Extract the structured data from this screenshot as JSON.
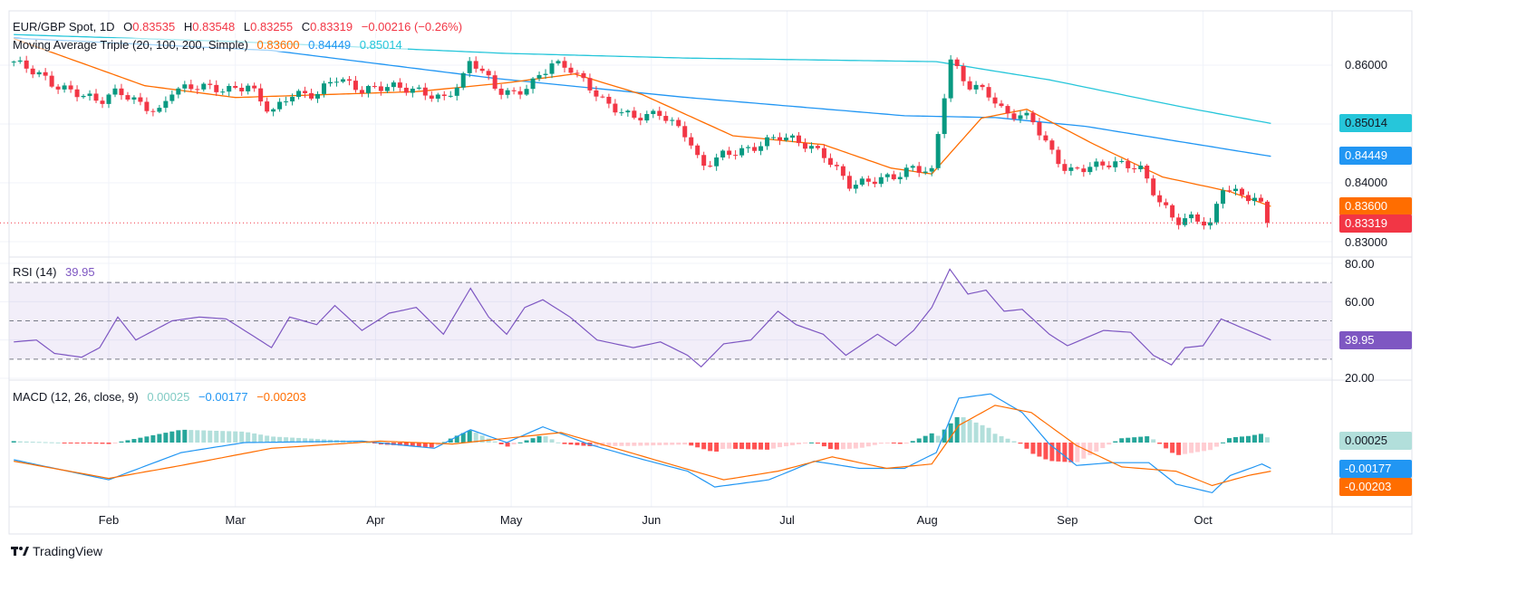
{
  "header": {
    "symbol": "EUR/GBP Spot, 1D",
    "open_label": "O",
    "open": "0.83535",
    "high_label": "H",
    "high": "0.83548",
    "low_label": "L",
    "low": "0.83255",
    "close_label": "C",
    "close": "0.83319",
    "change": "−0.00216 (−0.26%)"
  },
  "ma_legend": {
    "title": "Moving Average Triple (20, 100, 200, Simple)",
    "ma20": "0.83600",
    "ma100": "0.84449",
    "ma200": "0.85014"
  },
  "rsi_legend": {
    "title": "RSI (14)",
    "value": "39.95"
  },
  "macd_legend": {
    "title": "MACD (12, 26, close, 9)",
    "hist": "0.00025",
    "macd": "−0.00177",
    "signal": "−0.00203"
  },
  "price_axis": {
    "ticks": [
      "0.86000",
      "0.84000",
      "0.83000"
    ],
    "tags": {
      "ma200": "0.85014",
      "ma100": "0.84449",
      "ma20": "0.83600",
      "last": "0.83319"
    }
  },
  "rsi_axis": {
    "ticks": [
      "80.00",
      "60.00",
      "20.00"
    ],
    "tag": "39.95"
  },
  "macd_axis": {
    "tags": {
      "hist": "0.00025",
      "macd": "-0.00177",
      "signal": "-0.00203"
    }
  },
  "time_axis": [
    {
      "label": "Feb",
      "doy": 32
    },
    {
      "label": "Mar",
      "doy": 60
    },
    {
      "label": "Apr",
      "doy": 91
    },
    {
      "label": "May",
      "doy": 121
    },
    {
      "label": "Jun",
      "doy": 152
    },
    {
      "label": "Jul",
      "doy": 182
    },
    {
      "label": "Aug",
      "doy": 213
    },
    {
      "label": "Sep",
      "doy": 244
    },
    {
      "label": "Oct",
      "doy": 274
    }
  ],
  "brand": "TradingView",
  "colors": {
    "up": "#089981",
    "down": "#f23645",
    "ma20": "#ff6d00",
    "ma100": "#2196f3",
    "ma200": "#26c6da",
    "rsi": "#7e57c2",
    "macd": "#2196f3",
    "signal": "#ff6d00"
  },
  "chart_data": {
    "type": "candlestick",
    "title": "EUR/GBP Spot, 1D",
    "x_unit": "day of year",
    "price_range": [
      0.828,
      0.8695
    ],
    "close": [
      [
        11,
        0.8606
      ],
      [
        16,
        0.8588
      ],
      [
        20,
        0.8565
      ],
      [
        26,
        0.855
      ],
      [
        30,
        0.8538
      ],
      [
        34,
        0.8557
      ],
      [
        38,
        0.8538
      ],
      [
        43,
        0.8518
      ],
      [
        46,
        0.8557
      ],
      [
        52,
        0.8565
      ],
      [
        58,
        0.8557
      ],
      [
        63,
        0.8565
      ],
      [
        68,
        0.8518
      ],
      [
        72,
        0.855
      ],
      [
        78,
        0.855
      ],
      [
        82,
        0.858
      ],
      [
        88,
        0.8557
      ],
      [
        94,
        0.8565
      ],
      [
        100,
        0.8557
      ],
      [
        106,
        0.8542
      ],
      [
        110,
        0.8572
      ],
      [
        112,
        0.861
      ],
      [
        114,
        0.8595
      ],
      [
        118,
        0.8557
      ],
      [
        122,
        0.855
      ],
      [
        126,
        0.8572
      ],
      [
        130,
        0.8603
      ],
      [
        134,
        0.8595
      ],
      [
        138,
        0.8565
      ],
      [
        142,
        0.8534
      ],
      [
        148,
        0.8511
      ],
      [
        154,
        0.8518
      ],
      [
        160,
        0.848
      ],
      [
        163,
        0.8426
      ],
      [
        168,
        0.8449
      ],
      [
        174,
        0.8457
      ],
      [
        180,
        0.848
      ],
      [
        184,
        0.8472
      ],
      [
        190,
        0.8449
      ],
      [
        196,
        0.8395
      ],
      [
        200,
        0.8403
      ],
      [
        206,
        0.8411
      ],
      [
        210,
        0.8426
      ],
      [
        214,
        0.8418
      ],
      [
        216,
        0.8511
      ],
      [
        218,
        0.861
      ],
      [
        222,
        0.8565
      ],
      [
        226,
        0.8557
      ],
      [
        230,
        0.8518
      ],
      [
        236,
        0.8511
      ],
      [
        240,
        0.8457
      ],
      [
        244,
        0.8418
      ],
      [
        248,
        0.8426
      ],
      [
        254,
        0.8434
      ],
      [
        260,
        0.8426
      ],
      [
        264,
        0.8372
      ],
      [
        268,
        0.8334
      ],
      [
        272,
        0.8341
      ],
      [
        276,
        0.8326
      ],
      [
        278,
        0.8395
      ],
      [
        282,
        0.838
      ],
      [
        286,
        0.8372
      ],
      [
        289,
        0.8332
      ]
    ],
    "ma20": [
      [
        11,
        0.8645
      ],
      [
        40,
        0.8565
      ],
      [
        60,
        0.8545
      ],
      [
        100,
        0.8555
      ],
      [
        120,
        0.857
      ],
      [
        135,
        0.8585
      ],
      [
        150,
        0.855
      ],
      [
        170,
        0.848
      ],
      [
        190,
        0.8465
      ],
      [
        205,
        0.8425
      ],
      [
        214,
        0.8415
      ],
      [
        225,
        0.851
      ],
      [
        235,
        0.8525
      ],
      [
        250,
        0.8465
      ],
      [
        265,
        0.841
      ],
      [
        280,
        0.8385
      ],
      [
        289,
        0.836
      ]
    ],
    "ma100": [
      [
        11,
        0.8646
      ],
      [
        68,
        0.8625
      ],
      [
        118,
        0.8577
      ],
      [
        160,
        0.8545
      ],
      [
        208,
        0.8514
      ],
      [
        228,
        0.8511
      ],
      [
        248,
        0.8496
      ],
      [
        289,
        0.8445
      ]
    ],
    "ma200": [
      [
        11,
        0.8652
      ],
      [
        60,
        0.864
      ],
      [
        120,
        0.862
      ],
      [
        160,
        0.8612
      ],
      [
        215,
        0.8606
      ],
      [
        240,
        0.8575
      ],
      [
        270,
        0.8528
      ],
      [
        289,
        0.8501
      ]
    ],
    "rsi": {
      "range": [
        20,
        80
      ],
      "levels": [
        70,
        50,
        30
      ],
      "values": [
        [
          11,
          39
        ],
        [
          16,
          40
        ],
        [
          20,
          33
        ],
        [
          26,
          31
        ],
        [
          30,
          36
        ],
        [
          34,
          52
        ],
        [
          38,
          40
        ],
        [
          46,
          50
        ],
        [
          52,
          52
        ],
        [
          58,
          51
        ],
        [
          62,
          45
        ],
        [
          68,
          36
        ],
        [
          72,
          52
        ],
        [
          78,
          48
        ],
        [
          82,
          58
        ],
        [
          88,
          45
        ],
        [
          94,
          54
        ],
        [
          100,
          57
        ],
        [
          106,
          43
        ],
        [
          112,
          67
        ],
        [
          116,
          52
        ],
        [
          120,
          43
        ],
        [
          124,
          57
        ],
        [
          128,
          61
        ],
        [
          134,
          52
        ],
        [
          140,
          40
        ],
        [
          148,
          36
        ],
        [
          154,
          39
        ],
        [
          160,
          32
        ],
        [
          163,
          26
        ],
        [
          168,
          38
        ],
        [
          174,
          40
        ],
        [
          180,
          55
        ],
        [
          184,
          48
        ],
        [
          190,
          43
        ],
        [
          195,
          32
        ],
        [
          202,
          43
        ],
        [
          206,
          37
        ],
        [
          210,
          45
        ],
        [
          214,
          57
        ],
        [
          218,
          77
        ],
        [
          222,
          64
        ],
        [
          226,
          66
        ],
        [
          230,
          55
        ],
        [
          234,
          56
        ],
        [
          240,
          43
        ],
        [
          244,
          37
        ],
        [
          252,
          45
        ],
        [
          258,
          44
        ],
        [
          263,
          32
        ],
        [
          267,
          27
        ],
        [
          270,
          36
        ],
        [
          274,
          37
        ],
        [
          278,
          51
        ],
        [
          282,
          47
        ],
        [
          289,
          40
        ]
      ]
    },
    "macd": {
      "macd": [
        [
          11,
          -0.0012
        ],
        [
          32,
          -0.0026
        ],
        [
          48,
          -0.0007
        ],
        [
          62,
          0
        ],
        [
          88,
          0.0001
        ],
        [
          104,
          -0.0004
        ],
        [
          112,
          0.0009
        ],
        [
          120,
          0
        ],
        [
          128,
          0.0011
        ],
        [
          138,
          -0.0001
        ],
        [
          148,
          -0.001
        ],
        [
          160,
          -0.002
        ],
        [
          166,
          -0.0031
        ],
        [
          178,
          -0.0026
        ],
        [
          188,
          -0.0013
        ],
        [
          198,
          -0.0018
        ],
        [
          208,
          -0.0018
        ],
        [
          215,
          -0.0007
        ],
        [
          220,
          0.0031
        ],
        [
          227,
          0.0034
        ],
        [
          234,
          0.0021
        ],
        [
          240,
          -0.0001
        ],
        [
          246,
          -0.0016
        ],
        [
          254,
          -0.0014
        ],
        [
          262,
          -0.0014
        ],
        [
          268,
          -0.0029
        ],
        [
          276,
          -0.0035
        ],
        [
          280,
          -0.0023
        ],
        [
          287,
          -0.0015
        ],
        [
          289,
          -0.0018
        ]
      ],
      "signal": [
        [
          11,
          -0.0013
        ],
        [
          32,
          -0.0025
        ],
        [
          48,
          -0.0016
        ],
        [
          68,
          -0.0004
        ],
        [
          92,
          0.0001
        ],
        [
          108,
          -0.0001
        ],
        [
          120,
          0.0003
        ],
        [
          132,
          0.0007
        ],
        [
          144,
          -0.0004
        ],
        [
          156,
          -0.0015
        ],
        [
          168,
          -0.0026
        ],
        [
          180,
          -0.002
        ],
        [
          192,
          -0.001
        ],
        [
          204,
          -0.0018
        ],
        [
          214,
          -0.0015
        ],
        [
          220,
          0.0012
        ],
        [
          228,
          0.0026
        ],
        [
          236,
          0.0021
        ],
        [
          246,
          -0.0002
        ],
        [
          256,
          -0.0017
        ],
        [
          268,
          -0.002
        ],
        [
          276,
          -0.003
        ],
        [
          284,
          -0.0023
        ],
        [
          289,
          -0.002
        ]
      ]
    }
  }
}
